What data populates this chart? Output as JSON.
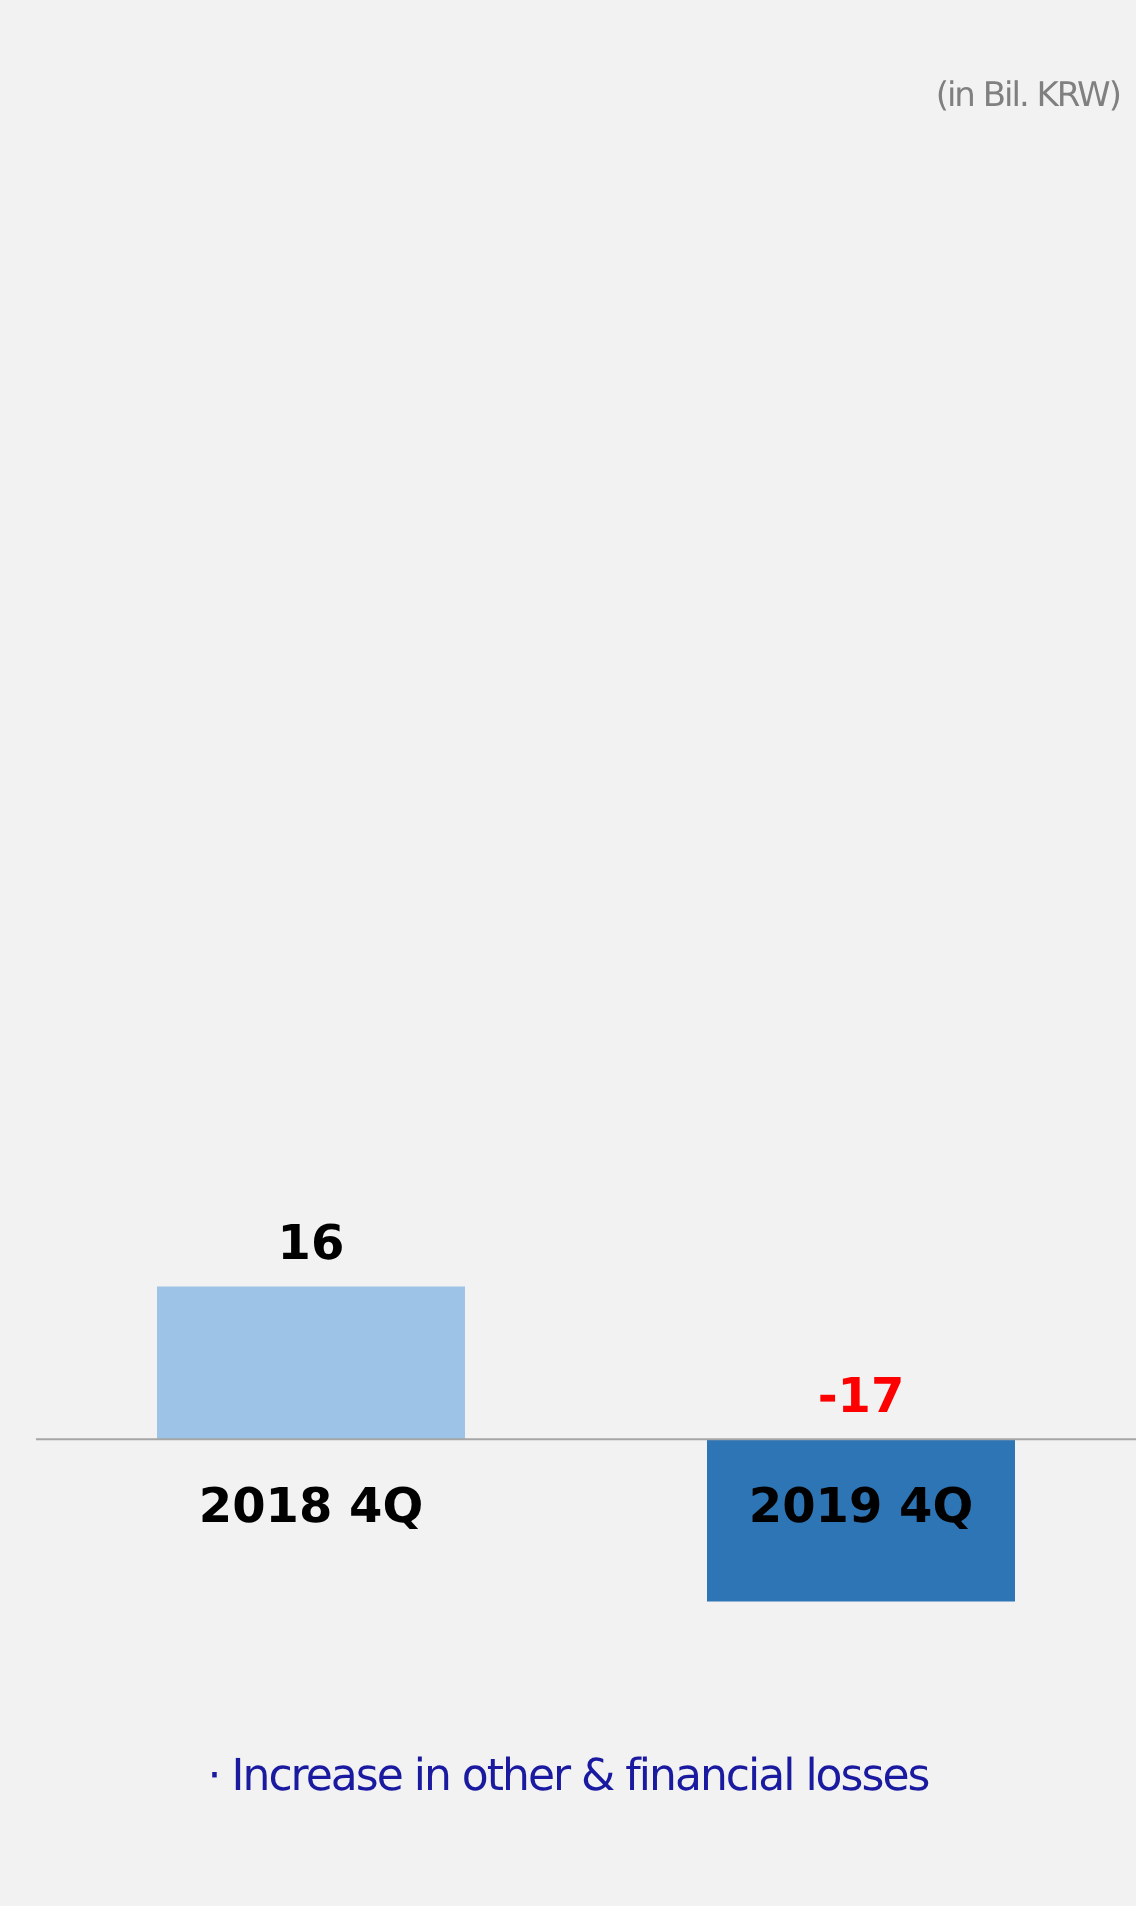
{
  "chart_data": {
    "type": "bar",
    "categories": [
      "2018 4Q",
      "2019 4Q"
    ],
    "values": [
      16,
      -17
    ],
    "colors": [
      "#9dc3e6",
      "#2e75b6"
    ],
    "data_labels": true,
    "tick_labels": false,
    "legend": false,
    "annotations": [
      "(in Bil. KRW)",
      "· Increase in other & financial losses"
    ]
  }
}
